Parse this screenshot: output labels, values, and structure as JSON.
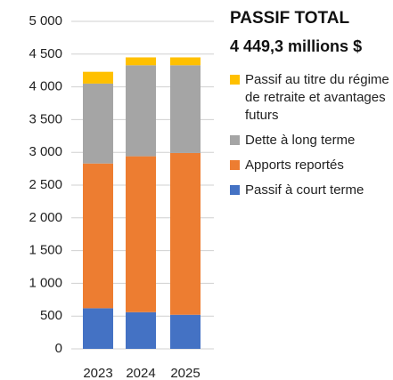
{
  "chart_data": {
    "type": "stacked_bar",
    "title": "PASSIF TOTAL",
    "subtitle": "4 449,3 millions $",
    "categories": [
      "2023",
      "2024",
      "2025"
    ],
    "series": [
      {
        "name": "Passif à court terme",
        "color": "#4472c4",
        "values": [
          620,
          560,
          520
        ]
      },
      {
        "name": "Apports reportés",
        "color": "#ed7d31",
        "values": [
          2210,
          2380,
          2470
        ]
      },
      {
        "name": "Dette à long terme",
        "color": "#a5a5a5",
        "values": [
          1220,
          1390,
          1340
        ]
      },
      {
        "name": "Passif au titre du régime de retraite et avantages futurs",
        "color": "#ffc000",
        "values": [
          180,
          120,
          120
        ]
      }
    ],
    "ylim": [
      0,
      5000
    ],
    "yticks": [
      0,
      500,
      {
        "value": 1000,
        "label": "1 000"
      },
      {
        "value": 1500,
        "label": "1 500"
      },
      {
        "value": 2000,
        "label": "2 000"
      },
      {
        "value": 2500,
        "label": "2 500"
      },
      {
        "value": 3000,
        "label": "3 000"
      },
      {
        "value": 3500,
        "label": "3 500"
      },
      {
        "value": 4000,
        "label": "4 000"
      },
      {
        "value": 4500,
        "label": "4 500"
      },
      {
        "value": 5000,
        "label": "5 000"
      }
    ],
    "grid": true,
    "legend": "right"
  }
}
